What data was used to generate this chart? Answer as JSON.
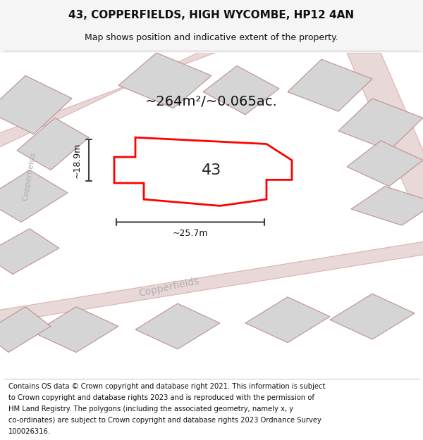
{
  "title": "43, COPPERFIELDS, HIGH WYCOMBE, HP12 4AN",
  "subtitle": "Map shows position and indicative extent of the property.",
  "footer_lines": [
    "Contains OS data © Crown copyright and database right 2021. This information is subject",
    "to Crown copyright and database rights 2023 and is reproduced with the permission of",
    "HM Land Registry. The polygons (including the associated geometry, namely x, y",
    "co-ordinates) are subject to Crown copyright and database rights 2023 Ordnance Survey",
    "100026316."
  ],
  "area_label": "~264m²/~0.065ac.",
  "width_label": "~25.7m",
  "height_label": "~18.9m",
  "number_label": "43",
  "bg_color": "#f5f5f5",
  "map_bg": "#ffffff",
  "plot_color": "#ff0000",
  "plot_fill": "#ffffff",
  "building_fill": "#d5d5d5",
  "building_edge": "#c09090",
  "road_fill": "#e8d8d8",
  "road_edge": "#e0b0b0",
  "street_label": "Copperfields",
  "street_label2": "Copperfields",
  "dim_color": "#404040",
  "title_fontsize": 11,
  "subtitle_fontsize": 9,
  "footer_fontsize": 7.2,
  "area_fontsize": 14,
  "dim_fontsize": 9,
  "number_fontsize": 16,
  "street_fontsize": 10,
  "street2_fontsize": 8
}
